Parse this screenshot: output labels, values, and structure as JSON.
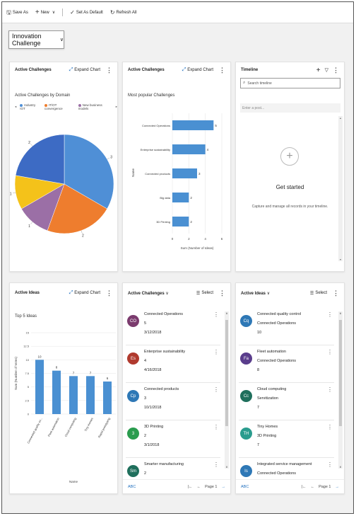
{
  "toolbar": {
    "save_as": "Save As",
    "new": "New",
    "set_default": "Set As Default",
    "refresh_all": "Refresh All"
  },
  "dashboard": {
    "title": "Innovation Challenge"
  },
  "colors": {
    "accent": "#1f6fbf",
    "bar": "#4a90d2"
  },
  "pie_card": {
    "header": "Active Challenges",
    "expand": "Expand Chart",
    "subtitle": "Active Challenges by Domain",
    "legend": [
      "Industry IOT",
      "IT/OT convergence",
      "New business models"
    ]
  },
  "hbar_card": {
    "header": "Active Challenges",
    "expand": "Expand Chart",
    "subtitle": "Most popular Challenges"
  },
  "timeline": {
    "header": "Timeline",
    "search_placeholder": "Search timeline",
    "post_placeholder": "Enter a post...",
    "get_started": "Get started",
    "description": "Capture and manage all records in your timeline."
  },
  "ideas_card": {
    "header": "Active Ideas",
    "expand": "Expand Chart",
    "subtitle": "Top 5 Ideas"
  },
  "challenges_list": {
    "header": "Active Challenges",
    "select": "Select",
    "abc": "ABC",
    "page": "Page 1",
    "items": [
      {
        "initials": "CO",
        "color": "#7b3b6e",
        "lines": [
          "Connected Operations",
          "5",
          "3/12/2018"
        ]
      },
      {
        "initials": "Es",
        "color": "#b03a2e",
        "lines": [
          "Enterprise sustainability",
          "4",
          "4/16/2018"
        ]
      },
      {
        "initials": "Cp",
        "color": "#2e78b6",
        "lines": [
          "Connected products",
          "3",
          "10/1/2018"
        ]
      },
      {
        "initials": "3",
        "color": "#2a9c4e",
        "lines": [
          "3D Printing",
          "2",
          "3/1/2018"
        ]
      },
      {
        "initials": "Sm",
        "color": "#1f6f5c",
        "lines": [
          "Smarter manufacturing",
          "2",
          ""
        ]
      }
    ]
  },
  "ideas_list": {
    "header": "Active Ideas",
    "select": "Select",
    "abc": "ABC",
    "page": "Page 1",
    "items": [
      {
        "initials": "Cq",
        "color": "#2e78b6",
        "lines": [
          "Connected quality control",
          "Connected Operations",
          "10"
        ]
      },
      {
        "initials": "Fa",
        "color": "#5a3d8c",
        "lines": [
          "Fleet automation",
          "Connected Operations",
          "8"
        ]
      },
      {
        "initials": "Cc",
        "color": "#1f6f5c",
        "lines": [
          "Cloud computing",
          "Servitization",
          "7"
        ]
      },
      {
        "initials": "TH",
        "color": "#2a9c8e",
        "lines": [
          "Tiny Homes",
          "3D Printing",
          "7"
        ]
      },
      {
        "initials": "Is",
        "color": "#2e78b6",
        "lines": [
          "Integrated service management",
          "Connected Operations",
          ""
        ]
      }
    ]
  },
  "chart_data": [
    {
      "type": "pie",
      "slices": [
        {
          "label": "3",
          "value": 3,
          "color": "#4f8fd6"
        },
        {
          "label": "2",
          "value": 2,
          "color": "#ee7d2e"
        },
        {
          "label": "1",
          "value": 1,
          "color": "#9b6fa6"
        },
        {
          "label": "1",
          "value": 1,
          "color": "#f4c21a"
        },
        {
          "label": "2",
          "value": 2,
          "color": "#3d6bc4"
        }
      ]
    },
    {
      "type": "bar",
      "orientation": "horizontal",
      "categories": [
        "Connected Operations",
        "Enterprise sustainability",
        "Connected products",
        "Big data",
        "3D Printing"
      ],
      "values": [
        5,
        4,
        3,
        2,
        2
      ],
      "xlabel": "Sum (Number of Ideas)",
      "ylabel": "Name",
      "xticks": [
        "0",
        "2",
        "4",
        "6"
      ],
      "xlim": [
        0,
        6
      ]
    },
    {
      "type": "bar",
      "categories": [
        "Connected quality co...",
        "Fleet automation",
        "Cloud computing",
        "Tiny Homes",
        "Rapid prototyping"
      ],
      "values": [
        10,
        8,
        7,
        7,
        6
      ],
      "xlabel": "Name",
      "ylabel": "Sum (Number of Votes)",
      "yticks": [
        "0",
        "2.5",
        "5",
        "7.5",
        "10",
        "12.5",
        "15"
      ],
      "ylim": [
        0,
        15
      ]
    }
  ]
}
